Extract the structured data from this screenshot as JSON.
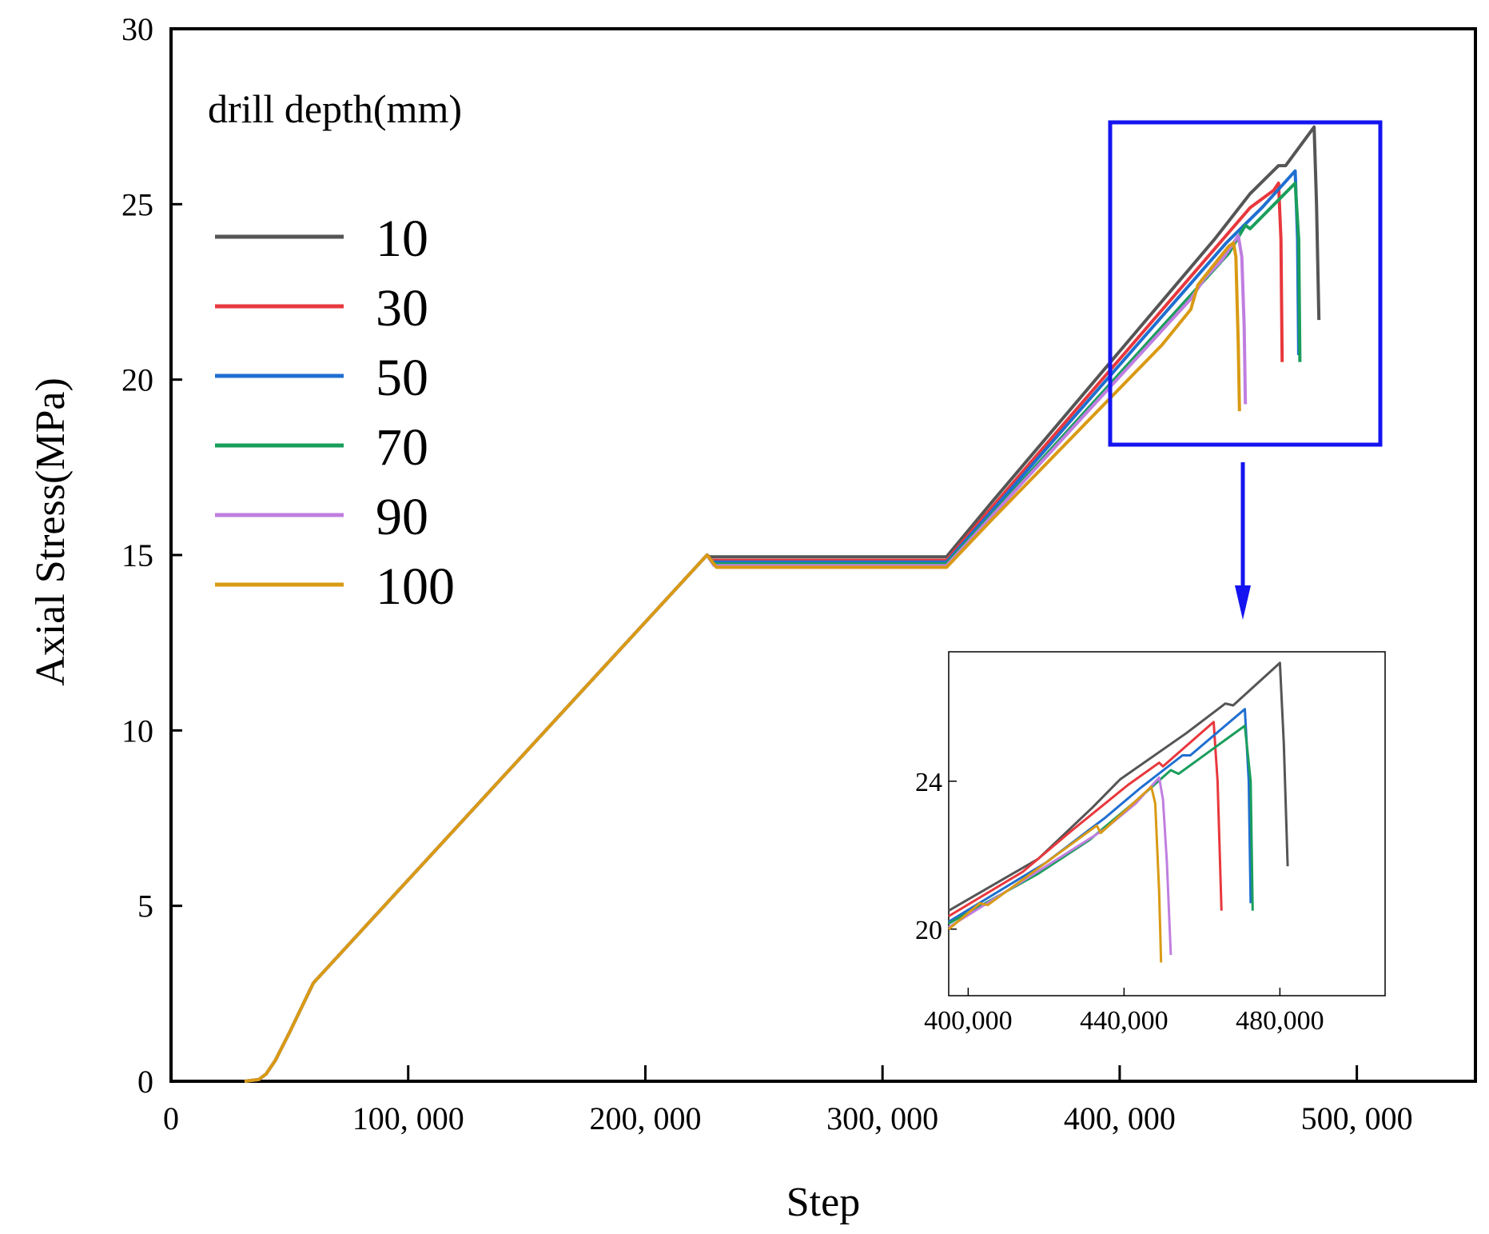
{
  "chart_data": [
    {
      "type": "line",
      "xlabel": "Step",
      "ylabel": "Axial Stress(MPa)",
      "xlim": [
        0,
        550000
      ],
      "ylim": [
        0,
        30
      ],
      "x_ticks": [
        0,
        100000,
        200000,
        300000,
        400000,
        500000
      ],
      "x_tick_labels": [
        "0",
        "100, 000",
        "200, 000",
        "300, 000",
        "400, 000",
        "500, 000"
      ],
      "y_ticks": [
        0,
        5,
        10,
        15,
        20,
        25,
        30
      ],
      "y_tick_labels": [
        "0",
        "5",
        "10",
        "15",
        "20",
        "25",
        "30"
      ],
      "grid": false,
      "legend": {
        "title": "drill depth(mm)",
        "position": "top-left"
      },
      "series": [
        {
          "name": "10",
          "color": "#555555",
          "points": [
            [
              31000,
              0
            ],
            [
              37000,
              0.05
            ],
            [
              40000,
              0.2
            ],
            [
              44000,
              0.6
            ],
            [
              50000,
              1.4
            ],
            [
              60000,
              2.8
            ],
            [
              226000,
              15.0
            ],
            [
              227000,
              14.95
            ],
            [
              327000,
              14.95
            ],
            [
              346000,
              16.5
            ],
            [
              440000,
              24.0
            ],
            [
              455000,
              25.3
            ],
            [
              467000,
              26.1
            ],
            [
              470000,
              26.1
            ],
            [
              482000,
              27.2
            ],
            [
              483000,
              25.0
            ],
            [
              484000,
              21.7
            ]
          ]
        },
        {
          "name": "30",
          "color": "#e8383d",
          "points": [
            [
              31000,
              0
            ],
            [
              37000,
              0.05
            ],
            [
              40000,
              0.2
            ],
            [
              44000,
              0.6
            ],
            [
              50000,
              1.4
            ],
            [
              60000,
              2.8
            ],
            [
              226000,
              15.0
            ],
            [
              228000,
              14.85
            ],
            [
              327000,
              14.85
            ],
            [
              346000,
              16.35
            ],
            [
              455000,
              24.9
            ],
            [
              465000,
              25.4
            ],
            [
              467000,
              25.6
            ],
            [
              468000,
              24.0
            ],
            [
              468500,
              20.5
            ]
          ]
        },
        {
          "name": "50",
          "color": "#1f6fd1",
          "points": [
            [
              31000,
              0
            ],
            [
              37000,
              0.05
            ],
            [
              40000,
              0.2
            ],
            [
              44000,
              0.6
            ],
            [
              50000,
              1.4
            ],
            [
              60000,
              2.8
            ],
            [
              226000,
              15.0
            ],
            [
              228000,
              14.8
            ],
            [
              327000,
              14.8
            ],
            [
              346000,
              16.25
            ],
            [
              445000,
              23.9
            ],
            [
              460000,
              24.9
            ],
            [
              474000,
              25.95
            ],
            [
              475000,
              24.0
            ],
            [
              475500,
              20.7
            ]
          ]
        },
        {
          "name": "70",
          "color": "#1a9e5c",
          "points": [
            [
              31000,
              0
            ],
            [
              37000,
              0.05
            ],
            [
              40000,
              0.2
            ],
            [
              44000,
              0.6
            ],
            [
              50000,
              1.4
            ],
            [
              60000,
              2.8
            ],
            [
              226000,
              15.0
            ],
            [
              229000,
              14.75
            ],
            [
              327000,
              14.75
            ],
            [
              346000,
              16.15
            ],
            [
              446000,
              23.6
            ],
            [
              453000,
              24.4
            ],
            [
              455000,
              24.3
            ],
            [
              474000,
              25.6
            ],
            [
              475500,
              24.0
            ],
            [
              476000,
              20.5
            ]
          ]
        },
        {
          "name": "90",
          "color": "#c07ee0",
          "points": [
            [
              31000,
              0
            ],
            [
              37000,
              0.05
            ],
            [
              40000,
              0.2
            ],
            [
              44000,
              0.6
            ],
            [
              50000,
              1.4
            ],
            [
              60000,
              2.8
            ],
            [
              226000,
              15.0
            ],
            [
              229000,
              14.7
            ],
            [
              327000,
              14.7
            ],
            [
              346000,
              16.1
            ],
            [
              430000,
              22.3
            ],
            [
              436000,
              22.9
            ],
            [
              443000,
              23.4
            ],
            [
              450000,
              24.1
            ],
            [
              451500,
              23.5
            ],
            [
              452500,
              21.5
            ],
            [
              453000,
              19.3
            ]
          ]
        },
        {
          "name": "100",
          "color": "#d99a14",
          "points": [
            [
              31000,
              0
            ],
            [
              37000,
              0.05
            ],
            [
              40000,
              0.2
            ],
            [
              44000,
              0.6
            ],
            [
              50000,
              1.4
            ],
            [
              60000,
              2.8
            ],
            [
              226000,
              15.0
            ],
            [
              230000,
              14.65
            ],
            [
              327000,
              14.65
            ],
            [
              346000,
              16.0
            ],
            [
              418000,
              21.0
            ],
            [
              430000,
              22.0
            ],
            [
              433000,
              22.7
            ],
            [
              446000,
              23.8
            ],
            [
              448000,
              23.9
            ],
            [
              449000,
              23.5
            ],
            [
              450000,
              21.0
            ],
            [
              450500,
              19.1
            ]
          ]
        }
      ]
    },
    {
      "type": "line",
      "title": "",
      "xlabel": "",
      "ylabel": "",
      "xlim": [
        395000,
        507000
      ],
      "ylim": [
        18.2,
        27.5
      ],
      "x_ticks": [
        400000,
        440000,
        480000
      ],
      "x_tick_labels": [
        "400,000",
        "440,000",
        "480,000"
      ],
      "y_ticks": [
        20,
        24
      ],
      "y_tick_labels": [
        "20",
        "24"
      ],
      "grid": false,
      "series_ref": "main",
      "series": [
        {
          "name": "10",
          "color": "#555555",
          "points": [
            [
              395000,
              20.5
            ],
            [
              418000,
              21.9
            ],
            [
              432000,
              23.3
            ],
            [
              439000,
              24.05
            ],
            [
              456000,
              25.3
            ],
            [
              466000,
              26.1
            ],
            [
              468000,
              26.05
            ],
            [
              480000,
              27.2
            ],
            [
              481000,
              25.0
            ],
            [
              482000,
              21.7
            ]
          ]
        },
        {
          "name": "30",
          "color": "#e8383d",
          "points": [
            [
              395000,
              20.35
            ],
            [
              414000,
              21.55
            ],
            [
              427000,
              22.7
            ],
            [
              441000,
              23.9
            ],
            [
              449000,
              24.5
            ],
            [
              450000,
              24.4
            ],
            [
              463000,
              25.6
            ],
            [
              464000,
              24.0
            ],
            [
              465000,
              20.5
            ]
          ]
        },
        {
          "name": "50",
          "color": "#1f6fd1",
          "points": [
            [
              395000,
              20.2
            ],
            [
              420000,
              21.8
            ],
            [
              435000,
              23.0
            ],
            [
              444000,
              23.8
            ],
            [
              455000,
              24.7
            ],
            [
              457000,
              24.7
            ],
            [
              471000,
              25.95
            ],
            [
              472000,
              24.0
            ],
            [
              472500,
              20.7
            ]
          ]
        },
        {
          "name": "70",
          "color": "#1a9e5c",
          "points": [
            [
              395000,
              20.15
            ],
            [
              418000,
              21.5
            ],
            [
              431000,
              22.4
            ],
            [
              444000,
              23.55
            ],
            [
              452000,
              24.3
            ],
            [
              454000,
              24.2
            ],
            [
              471000,
              25.5
            ],
            [
              472500,
              24.0
            ],
            [
              473000,
              20.5
            ]
          ]
        },
        {
          "name": "90",
          "color": "#c07ee0",
          "points": [
            [
              395000,
              20.05
            ],
            [
              417000,
              21.5
            ],
            [
              435000,
              22.7
            ],
            [
              443000,
              23.4
            ],
            [
              449000,
              24.1
            ],
            [
              450000,
              23.5
            ],
            [
              451000,
              21.8
            ],
            [
              452000,
              19.3
            ]
          ]
        },
        {
          "name": "100",
          "color": "#d99a14",
          "points": [
            [
              395000,
              20.0
            ],
            [
              403000,
              20.7
            ],
            [
              405000,
              20.65
            ],
            [
              433000,
              22.8
            ],
            [
              434000,
              22.6
            ],
            [
              447000,
              23.85
            ],
            [
              448000,
              23.4
            ],
            [
              449000,
              21.0
            ],
            [
              449500,
              19.1
            ]
          ]
        }
      ]
    }
  ]
}
